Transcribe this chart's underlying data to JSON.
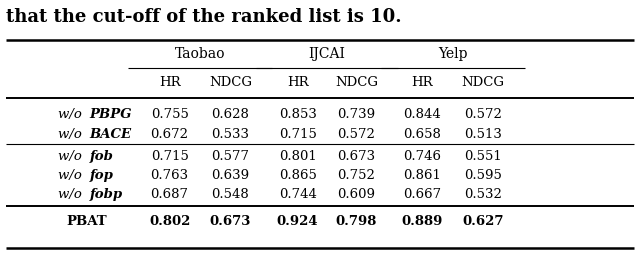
{
  "title_text": "that the cut-off of the ranked list is 10.",
  "col_groups": [
    "Taobao",
    "IJCAI",
    "Yelp"
  ],
  "sub_cols": [
    "HR",
    "NDCG"
  ],
  "rows": [
    {
      "label_normal": "w/o ",
      "label_italic": "PBPG",
      "values": [
        0.755,
        0.628,
        0.853,
        0.739,
        0.844,
        0.572
      ],
      "bold": false
    },
    {
      "label_normal": "w/o ",
      "label_italic": "BACE",
      "values": [
        0.672,
        0.533,
        0.715,
        0.572,
        0.658,
        0.513
      ],
      "bold": false
    },
    {
      "label_normal": "w/o ",
      "label_italic": "fob",
      "values": [
        0.715,
        0.577,
        0.801,
        0.673,
        0.746,
        0.551
      ],
      "bold": false
    },
    {
      "label_normal": "w/o ",
      "label_italic": "fop",
      "values": [
        0.763,
        0.639,
        0.865,
        0.752,
        0.861,
        0.595
      ],
      "bold": false
    },
    {
      "label_normal": "w/o ",
      "label_italic": "fobp",
      "values": [
        0.687,
        0.548,
        0.744,
        0.609,
        0.667,
        0.532
      ],
      "bold": false
    },
    {
      "label_normal": "PBAT",
      "label_italic": "",
      "values": [
        0.802,
        0.673,
        0.924,
        0.798,
        0.889,
        0.627
      ],
      "bold": true
    }
  ],
  "separator_after": [
    1,
    4
  ],
  "background_color": "#ffffff",
  "font_size": 9.5,
  "title_font_size": 13
}
